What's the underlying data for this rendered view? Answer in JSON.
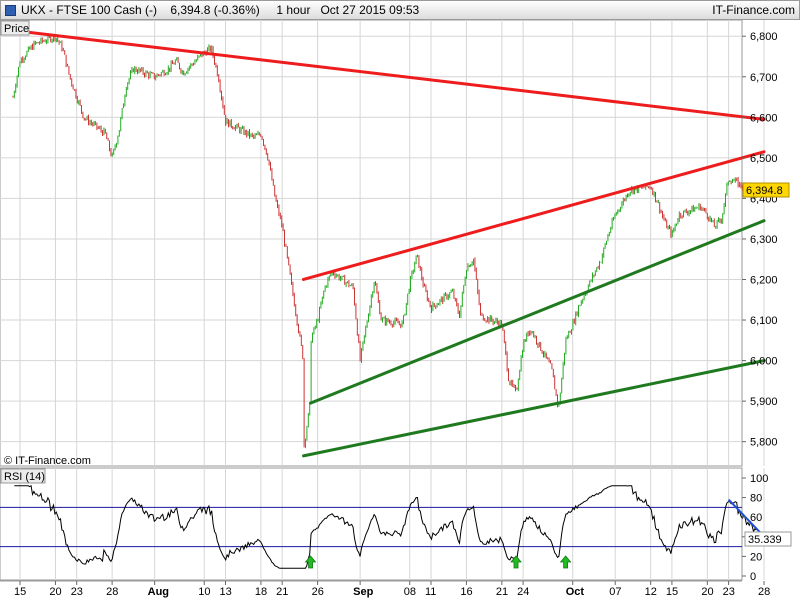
{
  "header": {
    "title": "UKX - FTSE 100 Cash (-)    6,394.8 (-0.36%)     1 hour   Oct 27 2015 09:53",
    "brand": "IT-Finance.com"
  },
  "chart_data": [
    {
      "type": "candlestick",
      "panel_label": "Price",
      "timeframe": "1 hour",
      "instrument": "UKX - FTSE 100 Cash (-)",
      "last_value": "6,394.8",
      "ylim": [
        5740,
        6840
      ],
      "y_ticks": [
        "6,800",
        "6,700",
        "6,600",
        "6,500",
        "6,400",
        "6,300",
        "6,200",
        "6,100",
        "6,000",
        "5,900",
        "5,800"
      ],
      "y_tick_values": [
        6800,
        6700,
        6600,
        6500,
        6400,
        6300,
        6200,
        6100,
        6000,
        5900,
        5800
      ],
      "grid": true,
      "credit": "© IT-Finance.com",
      "close_path": [
        [
          "Jul 14",
          6650
        ],
        [
          "Jul 15",
          6740
        ],
        [
          "Jul 17",
          6780
        ],
        [
          "Jul 20",
          6800
        ],
        [
          "Jul 21",
          6770
        ],
        [
          "Jul 22",
          6700
        ],
        [
          "Jul 23",
          6650
        ],
        [
          "Jul 24",
          6600
        ],
        [
          "Jul 27",
          6560
        ],
        [
          "Jul 28",
          6500
        ],
        [
          "Jul 29",
          6570
        ],
        [
          "Jul 30",
          6680
        ],
        [
          "Jul 31",
          6720
        ],
        [
          "Aug 3",
          6700
        ],
        [
          "Aug 5",
          6720
        ],
        [
          "Aug 6",
          6740
        ],
        [
          "Aug 7",
          6710
        ],
        [
          "Aug 10",
          6760
        ],
        [
          "Aug 11",
          6770
        ],
        [
          "Aug 12",
          6700
        ],
        [
          "Aug 13",
          6590
        ],
        [
          "Aug 14",
          6580
        ],
        [
          "Aug 17",
          6550
        ],
        [
          "Aug 18",
          6560
        ],
        [
          "Aug 19",
          6500
        ],
        [
          "Aug 20",
          6400
        ],
        [
          "Aug 21",
          6330
        ],
        [
          "Aug 24",
          6000
        ],
        [
          "Aug 24",
          5780
        ],
        [
          "Aug 25",
          5900
        ],
        [
          "Aug 25",
          6050
        ],
        [
          "Aug 26",
          6100
        ],
        [
          "Aug 27",
          6180
        ],
        [
          "Aug 28",
          6220
        ],
        [
          "Aug 31",
          6180
        ],
        [
          "Sep 1",
          6000
        ],
        [
          "Sep 2",
          6100
        ],
        [
          "Sep 3",
          6200
        ],
        [
          "Sep 4",
          6100
        ],
        [
          "Sep 7",
          6090
        ],
        [
          "Sep 8",
          6190
        ],
        [
          "Sep 9",
          6260
        ],
        [
          "Sep 10",
          6180
        ],
        [
          "Sep 11",
          6130
        ],
        [
          "Sep 14",
          6170
        ],
        [
          "Sep 15",
          6110
        ],
        [
          "Sep 16",
          6230
        ],
        [
          "Sep 17",
          6250
        ],
        [
          "Sep 18",
          6110
        ],
        [
          "Sep 21",
          6090
        ],
        [
          "Sep 22",
          5950
        ],
        [
          "Sep 23",
          5920
        ],
        [
          "Sep 24",
          6040
        ],
        [
          "Sep 25",
          6080
        ],
        [
          "Sep 28",
          5980
        ],
        [
          "Sep 29",
          5880
        ],
        [
          "Sep 30",
          6050
        ],
        [
          "Oct 1",
          6090
        ],
        [
          "Oct 2",
          6140
        ],
        [
          "Oct 5",
          6250
        ],
        [
          "Oct 6",
          6310
        ],
        [
          "Oct 7",
          6360
        ],
        [
          "Oct 8",
          6390
        ],
        [
          "Oct 9",
          6420
        ],
        [
          "Oct 12",
          6430
        ],
        [
          "Oct 13",
          6390
        ],
        [
          "Oct 14",
          6340
        ],
        [
          "Oct 15",
          6310
        ],
        [
          "Oct 16",
          6360
        ],
        [
          "Oct 19",
          6380
        ],
        [
          "Oct 20",
          6360
        ],
        [
          "Oct 21",
          6330
        ],
        [
          "Oct 22",
          6350
        ],
        [
          "Oct 23",
          6450
        ],
        [
          "Oct 26",
          6420
        ],
        [
          "Oct 27",
          6394.8
        ]
      ],
      "trendlines": [
        {
          "color": "#ee1c1c",
          "start": [
            "Jul 16",
            6810
          ],
          "end": [
            "Oct 28",
            6595
          ]
        },
        {
          "color": "#ee1c1c",
          "start": [
            "Aug 24",
            6200
          ],
          "end": [
            "Oct 28",
            6515
          ]
        },
        {
          "color": "#1f7a1f",
          "start": [
            "Aug 25",
            5895
          ],
          "end": [
            "Oct 28",
            6345
          ]
        },
        {
          "color": "#1f7a1f",
          "start": [
            "Aug 24",
            5765
          ],
          "end": [
            "Oct 28",
            6000
          ]
        }
      ]
    },
    {
      "type": "line",
      "panel_label": "RSI (14)",
      "name": "RSI (14)",
      "last_value": "35.339",
      "ylim": [
        0,
        100
      ],
      "y_ticks": [
        "100",
        "80",
        "60",
        "40",
        "20",
        "0"
      ],
      "y_tick_values": [
        100,
        80,
        60,
        40,
        20,
        0
      ],
      "reference_levels": [
        70,
        30
      ],
      "levels_color": "#1a1aa0",
      "series_color": "#000000",
      "arrow_color": "#1f4fd8",
      "arrow": {
        "start": [
          "Oct 23",
          78
        ],
        "end": [
          "Oct 28",
          32
        ]
      },
      "up_arrow_markers": [
        "Aug 25",
        "Sep 23",
        "Sep 30"
      ],
      "marker_color": "#22bb22"
    }
  ],
  "x_axis": {
    "labels": [
      "15",
      "20",
      "23",
      "28",
      "Aug",
      "10",
      "13",
      "18",
      "21",
      "26",
      "Sep",
      "08",
      "11",
      "16",
      "21",
      "24",
      "Oct",
      "07",
      "12",
      "15",
      "20",
      "23",
      "28"
    ],
    "month_labels": [
      "Aug",
      "Sep",
      "Oct"
    ]
  },
  "colors": {
    "candle_up": "#22aa22",
    "candle_down": "#cc3333",
    "grid": "#d6d6d6",
    "last_price_tag": "#ffd700"
  }
}
